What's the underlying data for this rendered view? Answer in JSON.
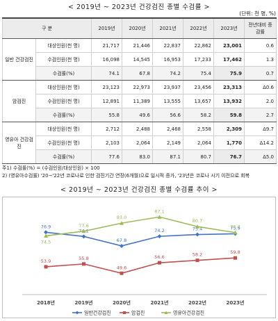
{
  "table_title": "< 2019년 ~ 2023년 건강검진 종별 수검률 >",
  "unit": "(단위: 천 명, %)",
  "header": {
    "category": "구 분",
    "years": [
      "2019년",
      "2020년",
      "2021년",
      "2022년",
      "2023년"
    ],
    "change": "전년대비 증감률"
  },
  "groups": [
    {
      "name": "일반 건강검진",
      "rows": [
        {
          "metric": "대상인원(천 명)",
          "values": [
            "21,717",
            "21,446",
            "22,837",
            "22,862",
            "23,001"
          ],
          "change": "0.6"
        },
        {
          "metric": "수검인원(천 명)",
          "values": [
            "16,098",
            "14,545",
            "16,953",
            "17,233",
            "17,462"
          ],
          "change": "1.3"
        },
        {
          "metric": "수검률(%)",
          "values": [
            "74.1",
            "67.8",
            "74.2",
            "75.4",
            "75.9"
          ],
          "change": "0.7"
        }
      ]
    },
    {
      "name": "암검진",
      "rows": [
        {
          "metric": "대상인원(천 명)",
          "values": [
            "23,123",
            "22,973",
            "23,937",
            "23,456",
            "23,313"
          ],
          "change": "Δ0.6"
        },
        {
          "metric": "수검인원(천 명)",
          "values": [
            "12,891",
            "11,389",
            "13,555",
            "13,657",
            "13,932"
          ],
          "change": "2.0"
        },
        {
          "metric": "수검률(%)",
          "values": [
            "55.8",
            "49.6",
            "56.6",
            "58.2",
            "59.8"
          ],
          "change": "2.7"
        }
      ]
    },
    {
      "name": "영유아 건강검진",
      "rows": [
        {
          "metric": "대상인원(천 명)",
          "values": [
            "2,712",
            "2,488",
            "2,468",
            "2,558",
            "2,309"
          ],
          "change": "Δ9.7"
        },
        {
          "metric": "수검인원(천 명)",
          "values": [
            "2,103",
            "2,064",
            "2,149",
            "2,064",
            "1,770"
          ],
          "change": "Δ14.2"
        },
        {
          "metric": "수검률(%)",
          "values": [
            "77.6",
            "83.0",
            "87.1",
            "80.7",
            "76.7"
          ],
          "change": "Δ5.0"
        }
      ]
    }
  ],
  "notes": [
    "주1) 수검률(%) = (수검인원/대상인원) × 100",
    "2) (영유아수검률) '20~'22년 코로나로 인한 검진기간 연장(6개월)으로 일시적 증가, '23년은 코로나 시기 이전으로 회복"
  ],
  "chart_title": "< 2019년 ~ 2023년 건강검진 종별 수검률 추이 >",
  "chart_data": {
    "type": "line",
    "categories": [
      "2018년",
      "2019년",
      "2020년",
      "2021년",
      "2022년",
      "2023년"
    ],
    "ylim": [
      40,
      90
    ],
    "grid": false,
    "legend_position": "bottom",
    "series": [
      {
        "name": "일반건강검진",
        "color": "#4472C4",
        "marker": "diamond",
        "values": [
          76.9,
          74.1,
          67.8,
          74.2,
          75.4,
          75.9
        ]
      },
      {
        "name": "암검진",
        "color": "#C0504D",
        "marker": "square",
        "values": [
          53.9,
          55.8,
          49.6,
          56.6,
          58.2,
          59.8
        ]
      },
      {
        "name": "영유아건강검진",
        "color": "#9BBB59",
        "marker": "triangle",
        "values": [
          74.5,
          77.6,
          83.0,
          87.1,
          80.7,
          76.7
        ]
      }
    ]
  }
}
